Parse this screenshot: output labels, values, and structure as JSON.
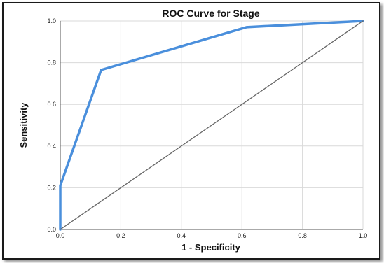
{
  "chart_data": {
    "type": "line",
    "title": "ROC Curve for Stage",
    "xlabel": "1 - Specificity",
    "ylabel": "Sensitivity",
    "xlim": [
      0.0,
      1.0
    ],
    "ylim": [
      0.0,
      1.0
    ],
    "x_ticks": [
      "0.0",
      "0.2",
      "0.4",
      "0.6",
      "0.8",
      "1.0"
    ],
    "y_ticks": [
      "0.0",
      "0.2",
      "0.4",
      "0.6",
      "0.8",
      "1.0"
    ],
    "grid": true,
    "series": [
      {
        "color": "#4a8fdc",
        "x": [
          0.0,
          0.0,
          0.135,
          0.615,
          1.0
        ],
        "y": [
          0.0,
          0.21,
          0.765,
          0.97,
          1.0
        ]
      },
      {
        "color": "#666666",
        "x": [
          0.0,
          1.0
        ],
        "y": [
          0.0,
          1.0
        ]
      }
    ]
  }
}
